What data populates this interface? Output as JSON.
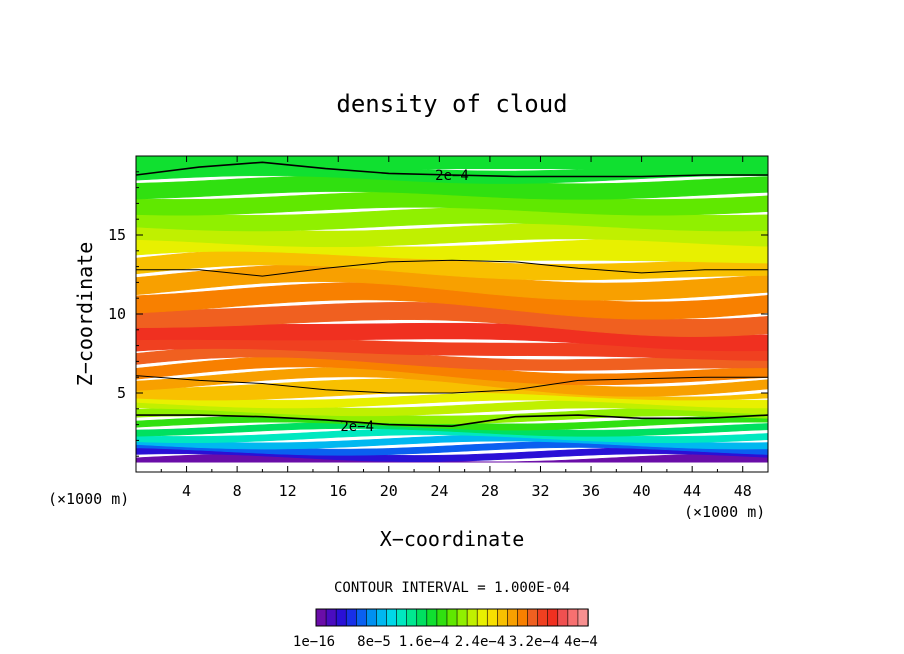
{
  "chart_data": {
    "type": "heatmap",
    "title": "density of cloud",
    "xlabel": "X−coordinate",
    "ylabel": "Z−coordinate",
    "x_unit_label": "(×1000 m)",
    "z_unit_label": "(×1000 m)",
    "xlim": [
      0,
      50
    ],
    "ylim": [
      0,
      20
    ],
    "x_ticks": [
      "4",
      "8",
      "12",
      "16",
      "20",
      "24",
      "28",
      "32",
      "36",
      "40",
      "44",
      "48"
    ],
    "y_ticks": [
      "5",
      "10",
      "15"
    ],
    "contour_interval_text": "CONTOUR INTERVAL = 1.000E-04",
    "contour_labels": [
      "2e−4",
      "2e−4"
    ],
    "colorbar": {
      "tick_labels": [
        "1e−16",
        "8e−5",
        "1.6e−4",
        "2.4e−4",
        "3.2e−4",
        "4e−4"
      ],
      "colors": [
        "#6a0da8",
        "#4a0cc0",
        "#2a10d6",
        "#1830e8",
        "#0a60f0",
        "#0090f0",
        "#00b8f0",
        "#00d8e8",
        "#00e8c0",
        "#00e890",
        "#00e060",
        "#10e030",
        "#30e010",
        "#60e800",
        "#90f000",
        "#c0f000",
        "#e8f000",
        "#f8e000",
        "#f8c000",
        "#f8a000",
        "#f88000",
        "#f06020",
        "#f04020",
        "#f03020",
        "#f05050",
        "#f87070",
        "#f89090"
      ]
    },
    "z_levels": [
      0.3,
      0.9,
      1.3,
      1.7,
      2.1,
      2.5,
      2.9,
      3.3,
      3.8,
      4.3,
      4.8,
      5.4,
      6.0,
      6.7,
      7.4,
      8.2,
      9.2,
      10.3,
      11.4,
      12.5,
      13.5,
      14.5,
      15.5,
      16.5,
      17.5,
      18.5,
      19.3
    ],
    "profile_x": [
      0,
      5,
      10,
      15,
      20,
      25,
      30,
      35,
      40,
      45,
      50
    ],
    "contours": {
      "upper_2e4": [
        18.8,
        19.3,
        19.6,
        19.2,
        18.9,
        18.8,
        18.7,
        18.7,
        18.7,
        18.8,
        18.8
      ],
      "mid_upper": [
        12.8,
        12.8,
        12.4,
        12.9,
        13.3,
        13.4,
        13.3,
        12.9,
        12.6,
        12.8,
        12.8
      ],
      "mid_lower": [
        6.1,
        5.8,
        5.6,
        5.2,
        5.0,
        5.0,
        5.2,
        5.8,
        5.9,
        6.0,
        6.0
      ],
      "lower_2e4": [
        3.6,
        3.6,
        3.5,
        3.3,
        3.0,
        2.9,
        3.5,
        3.6,
        3.4,
        3.4,
        3.6
      ]
    }
  }
}
